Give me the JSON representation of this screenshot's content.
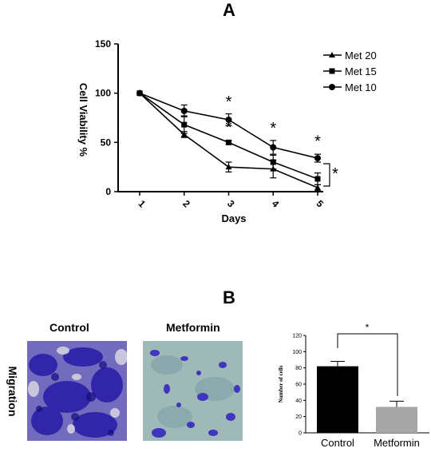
{
  "panel_a_label": "A",
  "panel_b_label": "B",
  "chart_data": [
    {
      "type": "line",
      "xlabel": "Days",
      "ylabel": "Cell Viability %",
      "x": [
        1,
        2,
        3,
        4,
        5
      ],
      "xticks": [
        "1",
        "2",
        "3",
        "4",
        "5"
      ],
      "yticks": [
        "0",
        "50",
        "100",
        "150"
      ],
      "ylim": [
        0,
        150
      ],
      "series": [
        {
          "name": "Met 20",
          "marker": "triangle",
          "values": [
            100,
            58,
            25,
            23,
            4
          ],
          "errors": [
            0,
            3,
            5,
            9,
            3
          ]
        },
        {
          "name": "Met 15",
          "marker": "square",
          "values": [
            100,
            68,
            50,
            30,
            13
          ],
          "errors": [
            0,
            9,
            2,
            7,
            6
          ]
        },
        {
          "name": "Met 10",
          "marker": "circle",
          "values": [
            100,
            82,
            73,
            45,
            34
          ],
          "errors": [
            0,
            6,
            6,
            7,
            4
          ]
        }
      ],
      "annotations": [
        "*",
        "*",
        "*",
        "*",
        "*",
        "*"
      ],
      "legend_position": "top-right"
    },
    {
      "type": "bar",
      "ylabel": "Number of cells",
      "categories": [
        "Control",
        "Metformin"
      ],
      "values": [
        82,
        32
      ],
      "errors": [
        6,
        7
      ],
      "bar_colors": [
        "#000000",
        "#a6a6a6"
      ],
      "yticks": [
        "0",
        "20",
        "40",
        "60",
        "80",
        "100",
        "120"
      ],
      "ylim": [
        0,
        120
      ],
      "significance": "*"
    }
  ],
  "micrographs": {
    "row_label": "Migration",
    "left_title": "Control",
    "right_title": "Metformin"
  }
}
